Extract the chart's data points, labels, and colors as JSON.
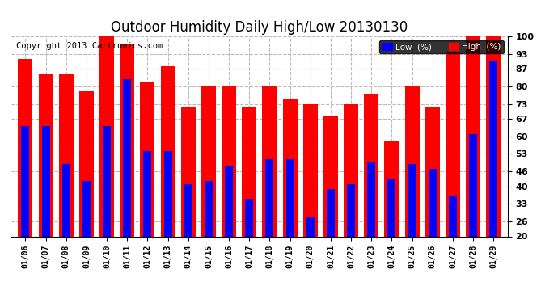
{
  "title": "Outdoor Humidity Daily High/Low 20130130",
  "copyright": "Copyright 2013 Cartronics.com",
  "dates": [
    "01/06",
    "01/07",
    "01/08",
    "01/09",
    "01/10",
    "01/11",
    "01/12",
    "01/13",
    "01/14",
    "01/15",
    "01/16",
    "01/17",
    "01/18",
    "01/19",
    "01/20",
    "01/21",
    "01/22",
    "01/23",
    "01/24",
    "01/25",
    "01/26",
    "01/27",
    "01/28",
    "01/29"
  ],
  "high": [
    91,
    85,
    85,
    78,
    100,
    97,
    82,
    88,
    72,
    80,
    80,
    72,
    80,
    75,
    73,
    68,
    73,
    77,
    58,
    80,
    72,
    94,
    100,
    100
  ],
  "low": [
    64,
    64,
    49,
    42,
    64,
    83,
    54,
    54,
    41,
    42,
    48,
    35,
    51,
    51,
    28,
    39,
    41,
    50,
    43,
    49,
    47,
    36,
    61,
    90
  ],
  "high_color": "#ff0000",
  "low_color": "#0000ff",
  "bg_color": "#ffffff",
  "grid_color": "#bbbbbb",
  "ylim_min": 20,
  "ylim_max": 100,
  "yticks": [
    20,
    26,
    33,
    40,
    46,
    53,
    60,
    67,
    73,
    80,
    87,
    93,
    100
  ],
  "bar_width": 0.72,
  "legend_low_label": "Low  (%)",
  "legend_high_label": "High  (%)",
  "title_fontsize": 12,
  "copyright_fontsize": 7.5
}
